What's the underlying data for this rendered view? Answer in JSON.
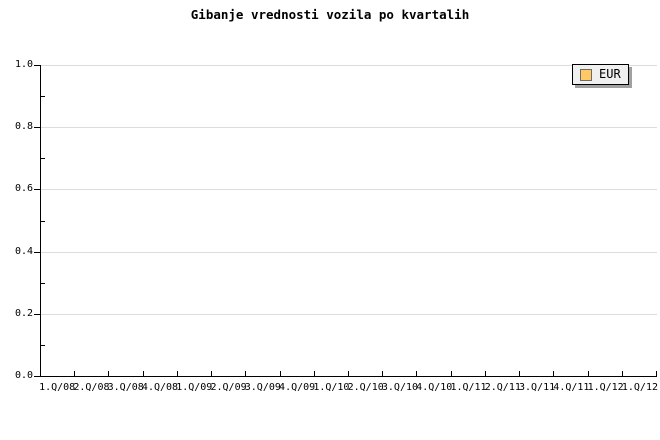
{
  "colors": {
    "background": "#ffffff",
    "text": "#000000",
    "axis": "#000000",
    "gridline": "#dcdcdc",
    "legend_bg": "#f0f0f0",
    "legend_border": "#000000",
    "legend_shadow": "#a0a0a0",
    "swatch_border": "#6b6b6b",
    "eur_series": "#FFC966"
  },
  "chart_data": {
    "type": "line",
    "title": "Gibanje vrednosti vozila po kvartalih",
    "categories": [
      "1.Q/08",
      "2.Q/08",
      "3.Q/08",
      "4.Q/08",
      "1.Q/09",
      "2.Q/09",
      "3.Q/09",
      "4.Q/09",
      "1.Q/10",
      "2.Q/10",
      "3.Q/10",
      "4.Q/10",
      "1.Q/11",
      "2.Q/11",
      "3.Q/11",
      "4.Q/11",
      "1.Q/12",
      "1.Q/12"
    ],
    "series": [
      {
        "name": "EUR",
        "color": "#FFC966",
        "values": []
      }
    ],
    "xlabel": "",
    "ylabel": "",
    "ylim": [
      0,
      1
    ],
    "y_ticks": [
      {
        "value": 0.0,
        "label": "0.0"
      },
      {
        "value": 0.2,
        "label": "0.2"
      },
      {
        "value": 0.4,
        "label": "0.4"
      },
      {
        "value": 0.6,
        "label": "0.6"
      },
      {
        "value": 0.8,
        "label": "0.8"
      },
      {
        "value": 1.0,
        "label": "1.0"
      }
    ],
    "y_minor_ticks": [
      0.1,
      0.3,
      0.5,
      0.7,
      0.9
    ],
    "grid": "horizontal-major",
    "legend": {
      "position": "top-right",
      "items": [
        {
          "label": "EUR",
          "color": "#FFC966"
        }
      ]
    }
  }
}
